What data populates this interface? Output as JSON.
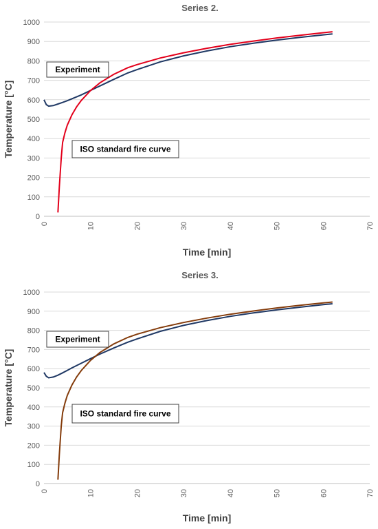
{
  "chart_data": [
    {
      "type": "line",
      "title": "Series 2.",
      "xlabel": "Time [min]",
      "ylabel": "Temperature [°C]",
      "xlim": [
        0,
        70
      ],
      "ylim": [
        0,
        1000
      ],
      "x_ticks": [
        0,
        10,
        20,
        30,
        40,
        50,
        60,
        70
      ],
      "y_ticks": [
        0,
        100,
        200,
        300,
        400,
        500,
        600,
        700,
        800,
        900,
        1000
      ],
      "grid": "horizontal",
      "annotations": [
        {
          "text": "Experiment"
        },
        {
          "text": "ISO standard fire curve"
        }
      ],
      "series": [
        {
          "color": "#1f3864",
          "x": [
            0,
            0.5,
            1,
            2,
            3,
            4,
            5,
            6,
            8,
            10,
            12,
            15,
            18,
            20,
            25,
            30,
            35,
            40,
            45,
            50,
            55,
            60,
            62
          ],
          "y": [
            600,
            575,
            567,
            570,
            578,
            586,
            595,
            605,
            625,
            648,
            671,
            705,
            738,
            755,
            795,
            826,
            851,
            873,
            891,
            907,
            921,
            934,
            939
          ]
        },
        {
          "color": "#e3001b",
          "x": [
            3,
            3.3,
            3.7,
            4,
            4.5,
            5,
            6,
            7,
            8,
            10,
            12,
            15,
            18,
            20,
            25,
            30,
            35,
            40,
            45,
            50,
            55,
            60,
            62
          ],
          "y": [
            20,
            150,
            300,
            380,
            430,
            469,
            522,
            563,
            596,
            647,
            687,
            731,
            765,
            781,
            815,
            842,
            865,
            885,
            902,
            918,
            932,
            945,
            950
          ]
        }
      ]
    },
    {
      "type": "line",
      "title": "Series 3.",
      "xlabel": "Time [min]",
      "ylabel": "Temperature [°C]",
      "xlim": [
        0,
        70
      ],
      "ylim": [
        0,
        1000
      ],
      "x_ticks": [
        0,
        10,
        20,
        30,
        40,
        50,
        60,
        70
      ],
      "y_ticks": [
        0,
        100,
        200,
        300,
        400,
        500,
        600,
        700,
        800,
        900,
        1000
      ],
      "grid": "horizontal",
      "annotations": [
        {
          "text": "Experiment"
        },
        {
          "text": "ISO standard fire curve"
        }
      ],
      "series": [
        {
          "color": "#1f3864",
          "x": [
            0,
            0.5,
            1,
            2,
            3,
            4,
            5,
            6,
            8,
            10,
            12,
            15,
            18,
            20,
            25,
            30,
            35,
            40,
            45,
            50,
            55,
            60,
            62
          ],
          "y": [
            580,
            560,
            552,
            556,
            566,
            578,
            591,
            604,
            628,
            652,
            676,
            708,
            738,
            755,
            795,
            826,
            851,
            873,
            891,
            907,
            921,
            934,
            939
          ]
        },
        {
          "color": "#843c0c",
          "x": [
            3,
            3.3,
            3.7,
            4,
            4.5,
            5,
            6,
            7,
            8,
            10,
            12,
            15,
            18,
            20,
            25,
            30,
            35,
            40,
            45,
            50,
            55,
            60,
            62
          ],
          "y": [
            20,
            150,
            300,
            370,
            420,
            460,
            514,
            556,
            590,
            643,
            684,
            729,
            763,
            780,
            814,
            841,
            864,
            884,
            901,
            917,
            931,
            943,
            948
          ]
        }
      ]
    }
  ]
}
